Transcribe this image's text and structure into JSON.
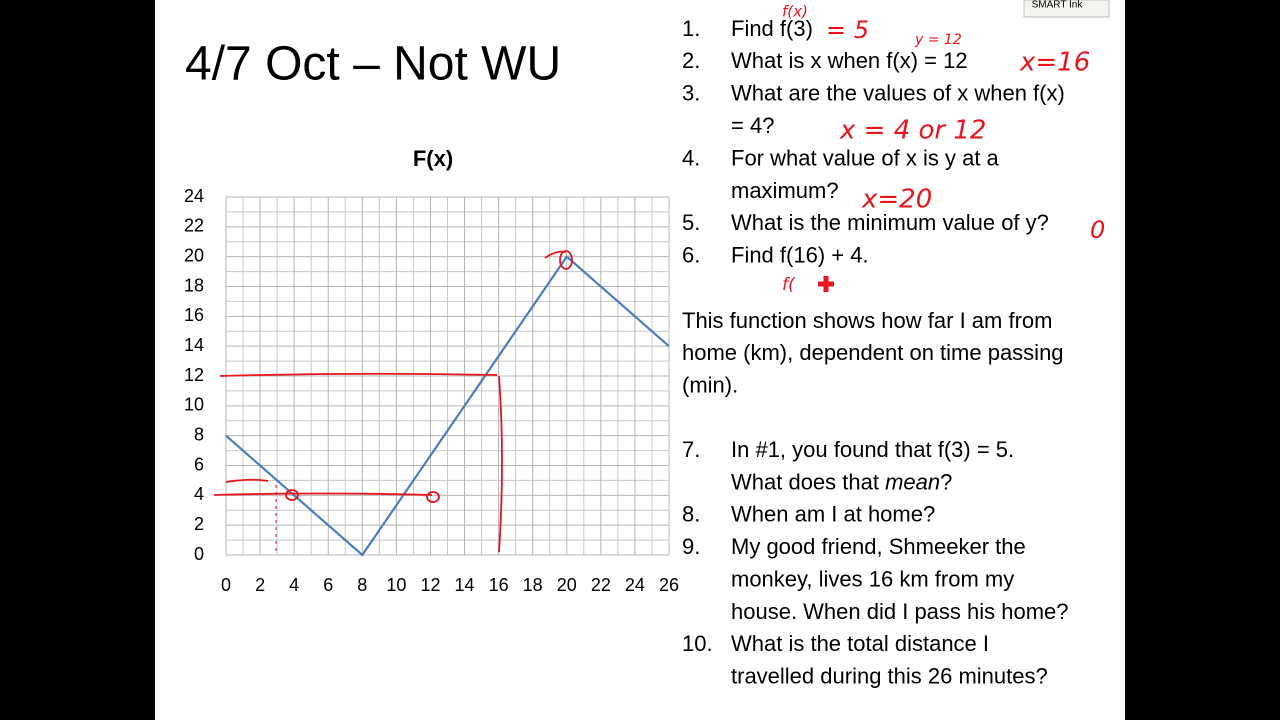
{
  "title": "4/7 Oct – Not WU",
  "toolbar": {
    "button": "SMART Ink"
  },
  "chart_data": {
    "type": "line",
    "title": "F(x)",
    "x": [
      0,
      8,
      20,
      26
    ],
    "series": [
      {
        "name": "F(x)",
        "color": "#4a7ebb",
        "values": [
          8,
          0,
          20,
          14
        ]
      }
    ],
    "xlim": [
      0,
      26
    ],
    "ylim": [
      0,
      24
    ],
    "xticks": [
      0,
      2,
      4,
      6,
      8,
      10,
      12,
      14,
      16,
      18,
      20,
      22,
      24,
      26
    ],
    "yticks": [
      0,
      2,
      4,
      6,
      8,
      10,
      12,
      14,
      16,
      18,
      20,
      22,
      24
    ],
    "grid": true,
    "minor_grid": true
  },
  "questions_a": [
    {
      "number": "1.",
      "lines": [
        "Find f(3)"
      ]
    },
    {
      "number": "2.",
      "lines": [
        "What is x when f(x) = 12"
      ]
    },
    {
      "number": "3.",
      "lines": [
        "What are the values of x when f(x)",
        "= 4?"
      ]
    },
    {
      "number": "4.",
      "lines": [
        "For what value of x is y at a",
        "maximum?"
      ]
    },
    {
      "number": "5.",
      "lines": [
        "What is the minimum value of y?"
      ]
    },
    {
      "number": "6.",
      "lines": [
        "Find f(16) + 4."
      ]
    }
  ],
  "paragraph": [
    "This function shows how far I am from",
    "home (km), dependent on time passing",
    "(min)."
  ],
  "questions_b": [
    {
      "number": "7.",
      "lines": [
        "In #1, you found that f(3) = 5.",
        [
          "What does that ",
          "mean",
          "?"
        ]
      ]
    },
    {
      "number": "8.",
      "lines": [
        "When am I at home?"
      ]
    },
    {
      "number": "9.",
      "lines": [
        "My good friend, Shmeeker the",
        "monkey, lives 16 km from my",
        "house.  When did I pass his home?"
      ]
    },
    {
      "number": "10.",
      "lines": [
        "What is the total distance I",
        "travelled during this 26 minutes?"
      ]
    }
  ],
  "ink": [
    "f(x)",
    "= 5",
    "y = 12",
    "x=16",
    "x = 4 or 12",
    "x=20",
    "0",
    "f("
  ]
}
